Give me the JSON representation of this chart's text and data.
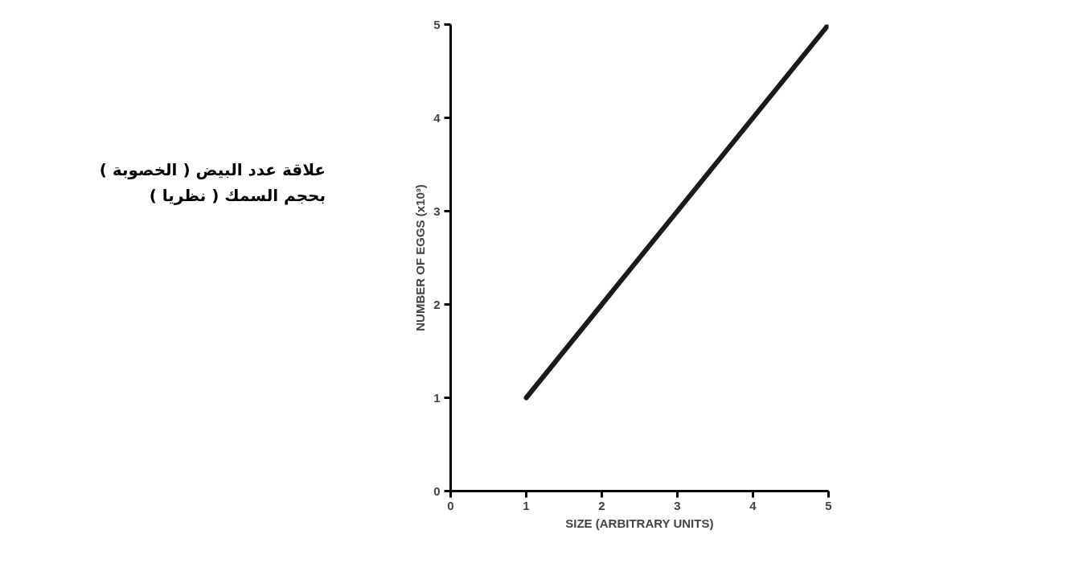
{
  "chart_data": {
    "type": "line",
    "xlabel": "SIZE (ARBITRARY UNITS)",
    "ylabel": "NUMBER OF EGGS (x10³)",
    "annotations": [
      "علاقة عدد البيض ( الخصوبة ) بحجم السمك ( نظريا )"
    ],
    "x": [
      1,
      5
    ],
    "series": [
      {
        "color": "#1a1a1a",
        "values": [
          1,
          5
        ]
      }
    ],
    "xlim": [
      0,
      5
    ],
    "ylim": [
      0,
      5
    ],
    "xticks": [
      0,
      1,
      2,
      3,
      4,
      5
    ],
    "yticks": [
      0,
      1,
      2,
      3,
      4,
      5
    ],
    "grid": false,
    "marker": "none",
    "line_style": "solid"
  }
}
